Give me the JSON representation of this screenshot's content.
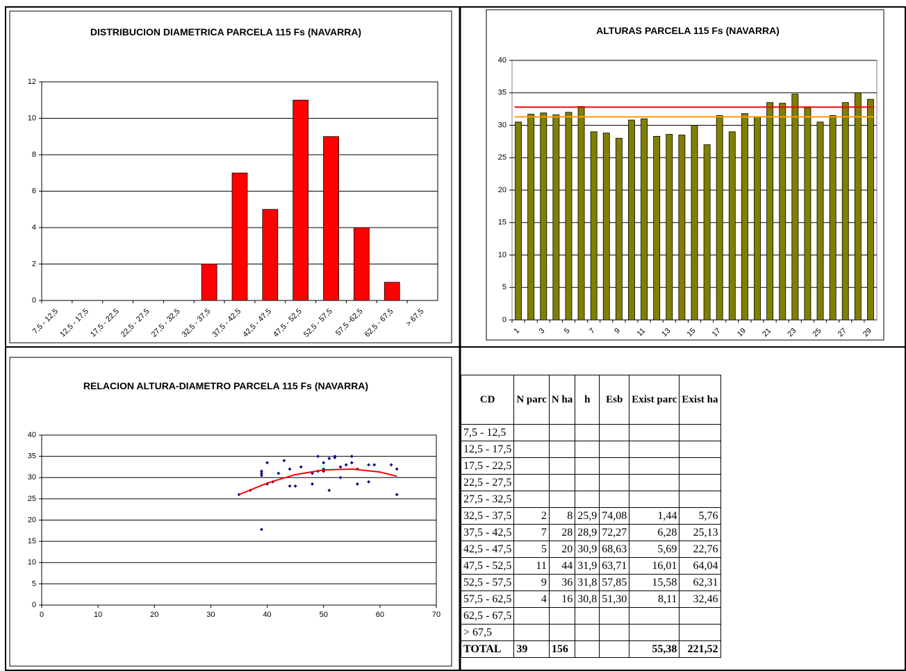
{
  "chart_data": [
    {
      "type": "bar",
      "title": "DISTRIBUCION DIAMETRICA PARCELA 115 Fs (NAVARRA)",
      "color": "#ff0000",
      "grid": true,
      "categories": [
        "7,5 - 12,5",
        "12,5 - 17,5",
        "17,5 - 22,5",
        "22,5 - 27,5",
        "27,5 - 32,5",
        "32,5 - 37,5",
        "37,5 - 42,5",
        "42,5 - 47,5",
        "47,5 - 52,5",
        "52,5 - 57,5",
        "57,5 -62,5",
        "62,5 - 67,5",
        "> 67,5"
      ],
      "values": [
        0,
        0,
        0,
        0,
        0,
        2,
        7,
        5,
        11,
        9,
        4,
        1,
        0
      ],
      "ylim": [
        0,
        12
      ],
      "yticks": [
        0,
        2,
        4,
        6,
        8,
        10,
        12
      ]
    },
    {
      "type": "bar",
      "title": "ALTURAS PARCELA 115 Fs (NAVARRA)",
      "color": "#808000",
      "grid": true,
      "categories": [
        "1",
        null,
        "3",
        null,
        "5",
        null,
        "7",
        null,
        "9",
        null,
        "11",
        null,
        "13",
        null,
        "15",
        null,
        "17",
        null,
        "19",
        null,
        "21",
        null,
        "23",
        null,
        "25",
        null,
        "27",
        null,
        "29"
      ],
      "values": [
        30.5,
        31.7,
        31.9,
        31.6,
        32,
        32.9,
        29,
        28.8,
        28,
        30.8,
        31,
        28.3,
        28.6,
        28.5,
        30,
        27,
        31.5,
        29,
        31.8,
        31.3,
        33.5,
        33.4,
        34.8,
        32.7,
        30.5,
        31.5,
        33.5,
        35,
        34
      ],
      "reference_lines": [
        {
          "value": 32.8,
          "color": "#ff0000"
        },
        {
          "value": 31.3,
          "color": "#ff9900"
        }
      ],
      "ylim": [
        0,
        40
      ],
      "yticks": [
        0,
        5,
        10,
        15,
        20,
        25,
        30,
        35,
        40
      ]
    },
    {
      "type": "scatter",
      "title": "RELACION ALTURA-DIAMETRO PARCELA 115 Fs (NAVARRA)",
      "color": "#000080",
      "grid": true,
      "x": [
        35,
        37,
        39,
        39,
        39,
        39,
        40,
        40,
        41,
        42,
        43,
        44,
        44,
        45,
        46,
        48,
        48,
        49,
        49,
        50,
        50,
        51,
        51,
        52,
        52,
        53,
        53,
        54,
        55,
        55,
        56,
        56,
        58,
        58,
        59,
        62,
        63,
        63,
        50
      ],
      "values": [
        26,
        27,
        31.5,
        30.5,
        17.8,
        31,
        28.5,
        33.5,
        29,
        31,
        34,
        28,
        32,
        28,
        32.5,
        28.5,
        31,
        35,
        31.5,
        33.5,
        32,
        27,
        34.5,
        35,
        34.7,
        32.5,
        30,
        33,
        35,
        33.5,
        28.5,
        32,
        33,
        29,
        33,
        33,
        32,
        26,
        31.5
      ],
      "trendline": {
        "color": "#ff0000",
        "x": [
          35,
          40,
          45,
          50,
          55,
          60,
          63
        ],
        "y": [
          26,
          28.7,
          30.7,
          31.8,
          32,
          31.3,
          30.3
        ]
      },
      "xlim": [
        0,
        70
      ],
      "xticks": [
        0,
        10,
        20,
        30,
        40,
        50,
        60,
        70
      ],
      "ylim": [
        0,
        40
      ],
      "yticks": [
        0,
        5,
        10,
        15,
        20,
        25,
        30,
        35,
        40
      ]
    }
  ],
  "table": {
    "header": [
      "CD",
      "N parc",
      "N ha",
      "h",
      "Esb",
      "Exist parc",
      "Exist ha"
    ],
    "rows": [
      [
        "7,5 - 12,5",
        null,
        null,
        null,
        null,
        null,
        null
      ],
      [
        "12,5 - 17,5",
        null,
        null,
        null,
        null,
        null,
        null
      ],
      [
        "17,5 - 22,5",
        null,
        null,
        null,
        null,
        null,
        null
      ],
      [
        "22,5 - 27,5",
        null,
        null,
        null,
        null,
        null,
        null
      ],
      [
        "27,5 - 32,5",
        null,
        null,
        null,
        null,
        null,
        null
      ],
      [
        "32,5 - 37,5",
        "2",
        "8",
        "25,9",
        "74,08",
        "1,44",
        "5,76"
      ],
      [
        "37,5 - 42,5",
        "7",
        "28",
        "28,9",
        "72,27",
        "6,28",
        "25,13"
      ],
      [
        "42,5 - 47,5",
        "5",
        "20",
        "30,9",
        "68,63",
        "5,69",
        "22,76"
      ],
      [
        "47,5 - 52,5",
        "11",
        "44",
        "31,9",
        "63,71",
        "16,01",
        "64,04"
      ],
      [
        "52,5 - 57,5",
        "9",
        "36",
        "31,8",
        "57,85",
        "15,58",
        "62,31"
      ],
      [
        "57,5 - 62,5",
        "4",
        "16",
        "30,8",
        "51,30",
        "8,11",
        "32,46"
      ],
      [
        "62,5 - 67,5",
        null,
        null,
        null,
        null,
        null,
        null
      ],
      [
        "> 67,5",
        null,
        null,
        null,
        null,
        null,
        null
      ]
    ],
    "total": [
      "TOTAL",
      "39",
      "156",
      null,
      null,
      "55,38",
      "221,52"
    ]
  }
}
